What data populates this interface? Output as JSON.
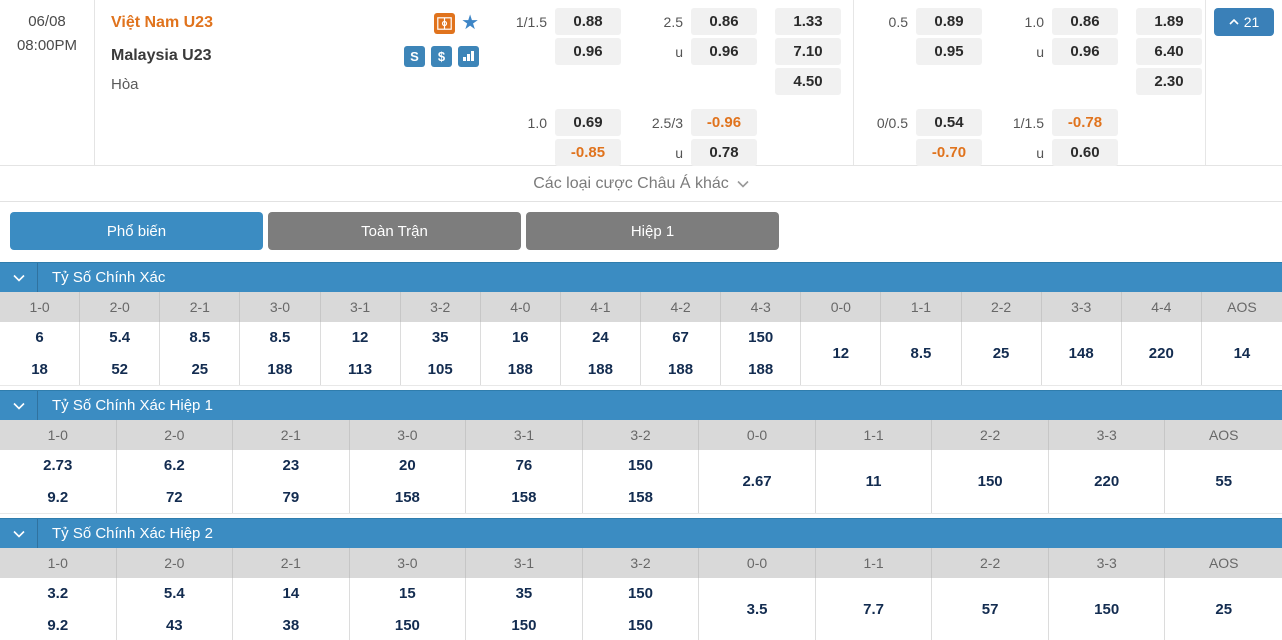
{
  "match": {
    "date": "06/08",
    "time": "08:00PM",
    "home_team": "Việt Nam U23",
    "away_team": "Malaysia U23",
    "draw_label": "Hòa",
    "more_bets_label": "Các loại cược Châu Á khác",
    "markets_count": "21",
    "icons": [
      "pitch-icon",
      "star-icon",
      "s-icon",
      "dollar-icon",
      "bar-chart-icon"
    ],
    "dollar_glyph": "$",
    "s_glyph": "S"
  },
  "odds": {
    "groups": [
      {
        "m1": {
          "hdp_line": "1/1.5",
          "hdp_top": "0.88",
          "hdp_bottom": "0.96",
          "ou_line": "2.5",
          "ou_top": "0.86",
          "u_label": "u",
          "ou_bottom": "0.96",
          "x12_home": "1.33",
          "x12_away": "7.10",
          "x12_draw": "4.50"
        },
        "m2": {
          "hdp_line": "1.0",
          "hdp_top": "0.69",
          "hdp_bottom": "-0.85",
          "ou_line": "2.5/3",
          "ou_top": "-0.96",
          "u_label": "u",
          "ou_bottom": "0.78"
        }
      },
      {
        "m1": {
          "hdp_line": "0.5",
          "hdp_top": "0.89",
          "hdp_bottom": "0.95",
          "ou_line": "1.0",
          "ou_top": "0.86",
          "u_label": "u",
          "ou_bottom": "0.96",
          "x12_home": "1.89",
          "x12_away": "6.40",
          "x12_draw": "2.30"
        },
        "m2": {
          "hdp_line": "0/0.5",
          "hdp_top": "0.54",
          "hdp_bottom": "-0.70",
          "ou_line": "1/1.5",
          "ou_top": "-0.78",
          "u_label": "u",
          "ou_bottom": "0.60"
        }
      }
    ]
  },
  "tabs": [
    {
      "label": "Phổ biến",
      "active": true
    },
    {
      "label": "Toàn Trận",
      "active": false
    },
    {
      "label": "Hiệp 1",
      "active": false
    }
  ],
  "sections": [
    {
      "title": "Tỷ Số Chính Xác",
      "columns": [
        "1-0",
        "2-0",
        "2-1",
        "3-0",
        "3-1",
        "3-2",
        "4-0",
        "4-1",
        "4-2",
        "4-3",
        "0-0",
        "1-1",
        "2-2",
        "3-3",
        "4-4",
        "AOS"
      ],
      "pairs": [
        [
          "6",
          "18"
        ],
        [
          "5.4",
          "52"
        ],
        [
          "8.5",
          "25"
        ],
        [
          "8.5",
          "188"
        ],
        [
          "12",
          "113"
        ],
        [
          "35",
          "105"
        ],
        [
          "16",
          "188"
        ],
        [
          "24",
          "188"
        ],
        [
          "67",
          "188"
        ],
        [
          "150",
          "188"
        ]
      ],
      "singles": [
        "12",
        "8.5",
        "25",
        "148",
        "220",
        "14"
      ]
    },
    {
      "title": "Tỷ Số Chính Xác Hiệp 1",
      "columns": [
        "1-0",
        "2-0",
        "2-1",
        "3-0",
        "3-1",
        "3-2",
        "0-0",
        "1-1",
        "2-2",
        "3-3",
        "AOS"
      ],
      "pairs": [
        [
          "2.73",
          "9.2"
        ],
        [
          "6.2",
          "72"
        ],
        [
          "23",
          "79"
        ],
        [
          "20",
          "158"
        ],
        [
          "76",
          "158"
        ],
        [
          "150",
          "158"
        ]
      ],
      "singles": [
        "2.67",
        "11",
        "150",
        "220",
        "55"
      ]
    },
    {
      "title": "Tỷ Số Chính Xác Hiệp 2",
      "columns": [
        "1-0",
        "2-0",
        "2-1",
        "3-0",
        "3-1",
        "3-2",
        "0-0",
        "1-1",
        "2-2",
        "3-3",
        "AOS"
      ],
      "pairs": [
        [
          "3.2",
          "9.2"
        ],
        [
          "5.4",
          "43"
        ],
        [
          "14",
          "38"
        ],
        [
          "15",
          "150"
        ],
        [
          "35",
          "150"
        ],
        [
          "150",
          "150"
        ]
      ],
      "singles": [
        "3.5",
        "7.7",
        "57",
        "150",
        "25"
      ]
    }
  ],
  "colors": {
    "accent_blue": "#3b8cc2",
    "tab_gray": "#7d7d7d",
    "orange": "#e0731d",
    "value_navy": "#132c50",
    "odds_box_bg": "#f1f1f1",
    "col_header_bg": "#d9d9d9"
  }
}
